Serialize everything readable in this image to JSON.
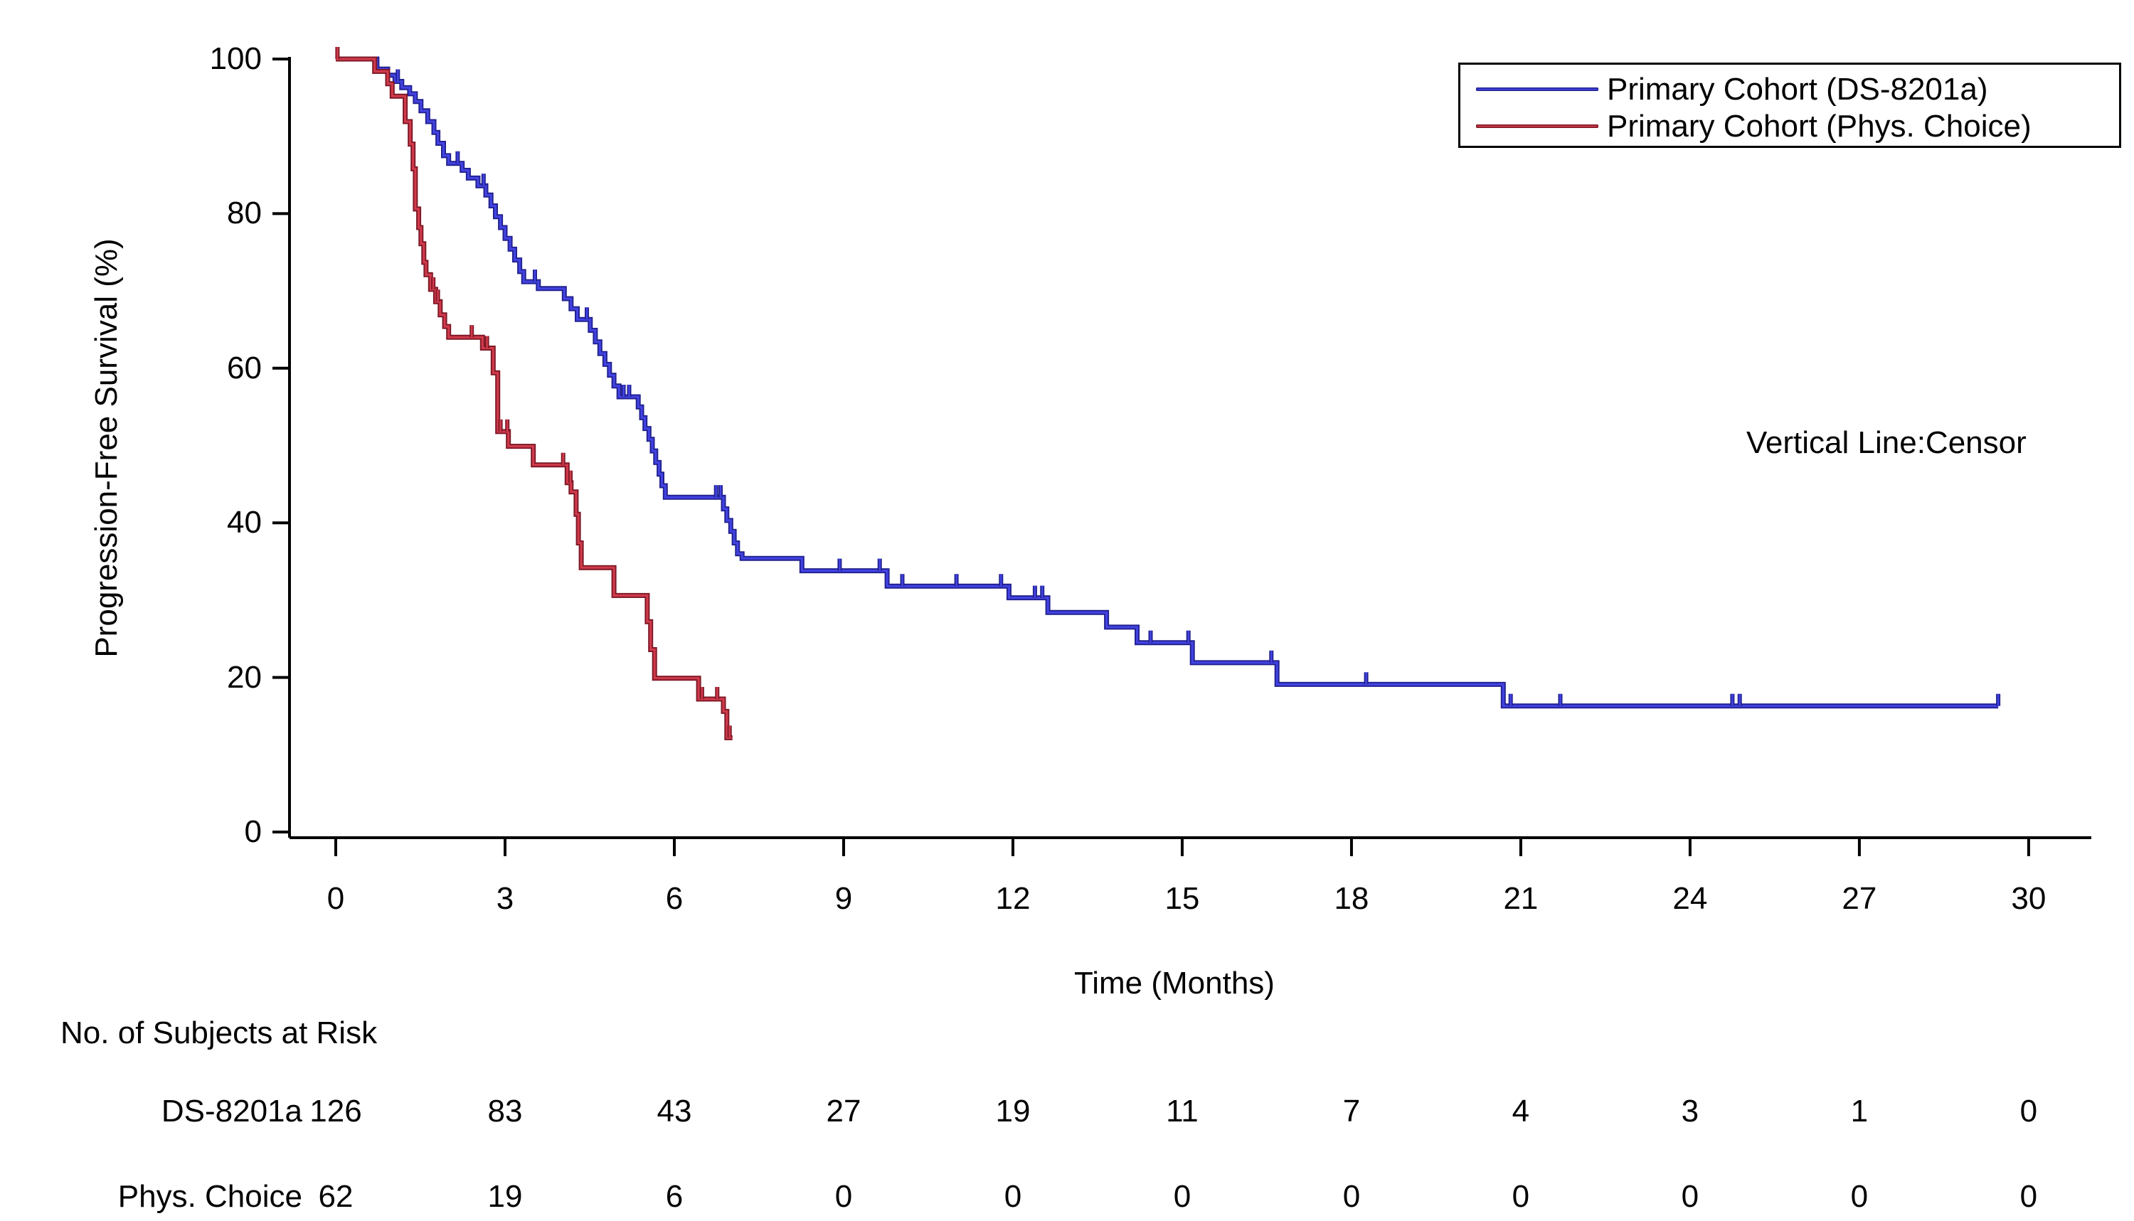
{
  "chart_data": {
    "type": "line",
    "subtype": "kaplan-meier-step",
    "title": "",
    "xlabel": "Time (Months)",
    "ylabel": "Progression-Free Survival (%)",
    "xlim": [
      0,
      30
    ],
    "ylim": [
      0,
      100
    ],
    "xticks": [
      0,
      3,
      6,
      9,
      12,
      15,
      18,
      21,
      24,
      27,
      30
    ],
    "yticks": [
      0,
      20,
      40,
      60,
      80,
      100
    ],
    "grid": false,
    "annotation": "Vertical Line:Censor",
    "legend_position": "top-right",
    "axis_color": "#000000",
    "series": [
      {
        "name": "Primary Cohort (DS-8201a)",
        "color": "#4343e2",
        "edge_color": "#20208f",
        "start": [
          0,
          100
        ],
        "end_time": 29.46,
        "steps": [
          [
            0.73,
            98.7
          ],
          [
            0.92,
            97.9
          ],
          [
            1.05,
            97.1
          ],
          [
            1.17,
            96.3
          ],
          [
            1.31,
            95.5
          ],
          [
            1.41,
            94.5
          ],
          [
            1.51,
            93.3
          ],
          [
            1.63,
            91.9
          ],
          [
            1.74,
            90.5
          ],
          [
            1.81,
            89.1
          ],
          [
            1.91,
            87.5
          ],
          [
            2.0,
            86.5
          ],
          [
            2.24,
            85.6
          ],
          [
            2.35,
            84.6
          ],
          [
            2.52,
            83.6
          ],
          [
            2.66,
            82.4
          ],
          [
            2.75,
            81.0
          ],
          [
            2.83,
            79.6
          ],
          [
            2.92,
            78.2
          ],
          [
            3.0,
            76.8
          ],
          [
            3.09,
            75.4
          ],
          [
            3.17,
            74.0
          ],
          [
            3.26,
            72.5
          ],
          [
            3.33,
            71.2
          ],
          [
            3.59,
            70.3
          ],
          [
            4.05,
            69.0
          ],
          [
            4.17,
            67.7
          ],
          [
            4.28,
            66.3
          ],
          [
            4.51,
            64.9
          ],
          [
            4.6,
            63.4
          ],
          [
            4.68,
            61.9
          ],
          [
            4.77,
            60.5
          ],
          [
            4.85,
            59.1
          ],
          [
            4.93,
            57.7
          ],
          [
            5.02,
            56.3
          ],
          [
            5.36,
            55.0
          ],
          [
            5.42,
            53.6
          ],
          [
            5.48,
            52.2
          ],
          [
            5.55,
            50.8
          ],
          [
            5.61,
            49.3
          ],
          [
            5.67,
            47.8
          ],
          [
            5.73,
            46.3
          ],
          [
            5.78,
            44.8
          ],
          [
            5.84,
            43.3
          ],
          [
            6.87,
            41.8
          ],
          [
            6.93,
            40.3
          ],
          [
            7.0,
            38.9
          ],
          [
            7.06,
            37.4
          ],
          [
            7.12,
            36.0
          ],
          [
            7.2,
            35.4
          ],
          [
            8.26,
            33.8
          ],
          [
            9.77,
            31.8
          ],
          [
            11.93,
            30.3
          ],
          [
            12.62,
            28.4
          ],
          [
            13.66,
            26.5
          ],
          [
            14.2,
            24.5
          ],
          [
            15.18,
            21.9
          ],
          [
            16.68,
            19.1
          ],
          [
            20.69,
            16.3
          ]
        ],
        "censor_times": [
          1.1,
          2.16,
          2.62,
          3.53,
          4.45,
          5.1,
          5.2,
          6.74,
          6.82,
          8.93,
          9.64,
          10.04,
          11.0,
          11.79,
          12.39,
          12.52,
          14.44,
          15.11,
          16.58,
          18.26,
          20.82,
          21.7,
          24.75,
          24.88,
          29.46
        ]
      },
      {
        "name": "Primary Cohort (Phys. Choice)",
        "color": "#cf3b4c",
        "edge_color": "#7d1624",
        "start": [
          0,
          100
        ],
        "end_time": 7.03,
        "steps": [
          [
            0.69,
            98.4
          ],
          [
            0.92,
            96.8
          ],
          [
            1.0,
            95.2
          ],
          [
            1.23,
            91.9
          ],
          [
            1.32,
            89.0
          ],
          [
            1.37,
            85.8
          ],
          [
            1.41,
            80.6
          ],
          [
            1.47,
            78.2
          ],
          [
            1.51,
            76.1
          ],
          [
            1.56,
            73.7
          ],
          [
            1.6,
            72.1
          ],
          [
            1.68,
            70.2
          ],
          [
            1.77,
            68.6
          ],
          [
            1.85,
            66.9
          ],
          [
            1.93,
            65.4
          ],
          [
            2.0,
            64.0
          ],
          [
            2.6,
            62.6
          ],
          [
            2.79,
            59.4
          ],
          [
            2.87,
            51.8
          ],
          [
            3.06,
            49.9
          ],
          [
            3.5,
            47.5
          ],
          [
            4.1,
            45.2
          ],
          [
            4.17,
            44.0
          ],
          [
            4.26,
            41.1
          ],
          [
            4.3,
            37.4
          ],
          [
            4.35,
            34.2
          ],
          [
            4.93,
            30.6
          ],
          [
            5.52,
            27.2
          ],
          [
            5.58,
            23.6
          ],
          [
            5.65,
            19.9
          ],
          [
            6.43,
            17.2
          ],
          [
            6.87,
            15.6
          ],
          [
            6.93,
            12.2
          ]
        ],
        "censor_times": [
          0.03,
          1.73,
          1.81,
          2.41,
          2.68,
          2.92,
          3.04,
          4.03,
          4.16,
          6.49,
          6.76,
          6.98
        ]
      }
    ]
  },
  "risk_table": {
    "title": "No. of Subjects at Risk",
    "times": [
      0,
      3,
      6,
      9,
      12,
      15,
      18,
      21,
      24,
      27,
      30
    ],
    "rows": [
      {
        "label": "DS-8201a",
        "values": [
          "126",
          "83",
          "43",
          "27",
          "19",
          "11",
          "7",
          "4",
          "3",
          "1",
          "0"
        ]
      },
      {
        "label": "Phys. Choice",
        "values": [
          "62",
          "19",
          "6",
          "0",
          "0",
          "0",
          "0",
          "0",
          "0",
          "0",
          "0"
        ]
      }
    ]
  }
}
